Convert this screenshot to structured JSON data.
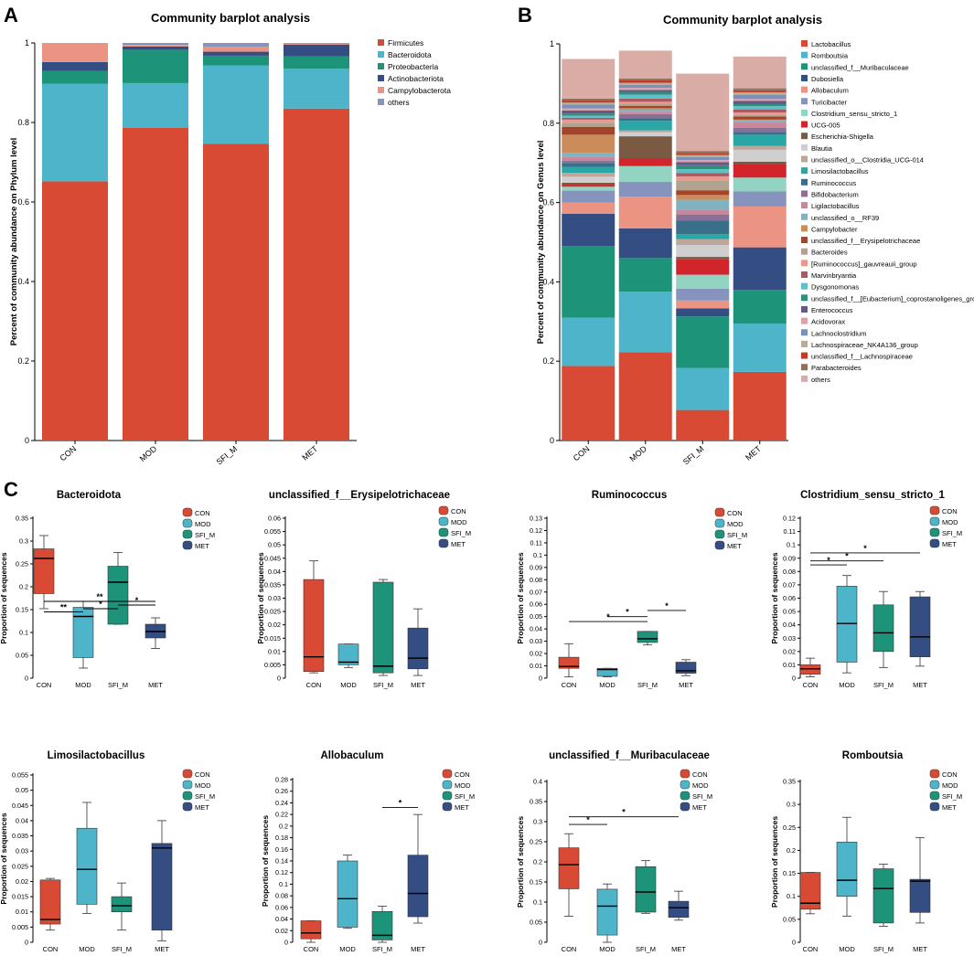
{
  "palette": {
    "CON": "#d94a35",
    "MOD": "#4eb4c9",
    "SFI_M": "#1d9479",
    "MET": "#344d82"
  },
  "chart_data": [
    {
      "panel": "A",
      "type": "bar",
      "stacked": true,
      "title": "Community barplot analysis",
      "ylabel": "Percent of community abundance on Phylum level",
      "ylim": [
        0,
        1
      ],
      "yticks": [
        "0",
        "0.2",
        "0.4",
        "0.6",
        "0.8",
        "1"
      ],
      "categories": [
        "CON",
        "MOD",
        "SFI_M",
        "MET"
      ],
      "series": [
        {
          "name": "Firmicutes",
          "color": "#d94a35",
          "values": [
            0.652,
            0.787,
            0.746,
            0.835
          ]
        },
        {
          "name": "Bacteroidota",
          "color": "#4eb4c9",
          "values": [
            0.245,
            0.112,
            0.197,
            0.1
          ]
        },
        {
          "name": "Proteobacteria",
          "color": "#1d9479",
          "values": [
            0.033,
            0.084,
            0.025,
            0.031
          ]
        },
        {
          "name": "Actinobacteriota",
          "color": "#344d82",
          "values": [
            0.022,
            0.008,
            0.01,
            0.03
          ]
        },
        {
          "name": "Campylobacterota",
          "color": "#ec9483",
          "values": [
            0.048,
            0.004,
            0.012,
            0.002
          ]
        },
        {
          "name": "others",
          "color": "#8694bd",
          "values": [
            0.0,
            0.005,
            0.01,
            0.002
          ]
        }
      ]
    },
    {
      "panel": "B",
      "type": "bar",
      "stacked": true,
      "title": "Community barplot analysis",
      "ylabel": "Percent of community abundance on Genus level",
      "ylim": [
        0,
        1
      ],
      "yticks": [
        "0",
        "0.2",
        "0.4",
        "0.6",
        "0.8",
        "1"
      ],
      "categories": [
        "CON",
        "MOD",
        "SFI_M",
        "MET"
      ],
      "series": [
        {
          "name": "Lactobacillus",
          "color": "#d94a35",
          "values": [
            0.188,
            0.223,
            0.077,
            0.173
          ]
        },
        {
          "name": "Romboutsia",
          "color": "#4eb4c9",
          "values": [
            0.122,
            0.152,
            0.106,
            0.122
          ]
        },
        {
          "name": "unclassified_f__Muribaculaceae",
          "color": "#1d9479",
          "values": [
            0.18,
            0.085,
            0.13,
            0.085
          ]
        },
        {
          "name": "Dubosiella",
          "color": "#344d82",
          "values": [
            0.082,
            0.075,
            0.02,
            0.107
          ]
        },
        {
          "name": "Allobaculum",
          "color": "#ec9483",
          "values": [
            0.028,
            0.08,
            0.02,
            0.103
          ]
        },
        {
          "name": "Turicibacter",
          "color": "#8694bd",
          "values": [
            0.03,
            0.037,
            0.03,
            0.038
          ]
        },
        {
          "name": "Clostridium_sensu_stricto_1",
          "color": "#93d3c1",
          "values": [
            0.01,
            0.04,
            0.035,
            0.035
          ]
        },
        {
          "name": "UCG-005",
          "color": "#d1242b",
          "values": [
            0.005,
            0.02,
            0.04,
            0.035
          ]
        },
        {
          "name": "Escherichia-Shigella",
          "color": "#7b5a44",
          "values": [
            0.005,
            0.055,
            0.005,
            0.005
          ]
        },
        {
          "name": "Blautia",
          "color": "#d0cece",
          "values": [
            0.015,
            0.01,
            0.03,
            0.03
          ]
        },
        {
          "name": "unclassified_o__Clostridia_UCG-014",
          "color": "#bea69a",
          "values": [
            0.01,
            0.005,
            0.015,
            0.01
          ]
        },
        {
          "name": "Limosilactobacillus",
          "color": "#2aa6a6",
          "values": [
            0.015,
            0.024,
            0.012,
            0.028
          ]
        },
        {
          "name": "Ruminococcus",
          "color": "#3a6f89",
          "values": [
            0.01,
            0.007,
            0.035,
            0.007
          ]
        },
        {
          "name": "Bifidobacterium",
          "color": "#8a6f96",
          "values": [
            0.005,
            0.01,
            0.015,
            0.01
          ]
        },
        {
          "name": "Ligilactobacillus",
          "color": "#c8879a",
          "values": [
            0.01,
            0.006,
            0.012,
            0.014
          ]
        },
        {
          "name": "unclassified_o__RF39",
          "color": "#80b2c0",
          "values": [
            0.01,
            0.005,
            0.025,
            0.005
          ]
        },
        {
          "name": "Campylobacter",
          "color": "#cb8b5b",
          "values": [
            0.046,
            0.004,
            0.012,
            0.002
          ]
        },
        {
          "name": "unclassified_f__Erysipelotrichaceae",
          "color": "#a3452b",
          "values": [
            0.02,
            0.006,
            0.012,
            0.008
          ]
        },
        {
          "name": "Bacteroides",
          "color": "#b0a390",
          "values": [
            0.01,
            0.005,
            0.025,
            0.005
          ]
        },
        {
          "name": "[Ruminococcus]_gauvreauii_group",
          "color": "#e89a8d",
          "values": [
            0.008,
            0.005,
            0.01,
            0.005
          ]
        },
        {
          "name": "Marvinbryantia",
          "color": "#aa5a62",
          "values": [
            0.005,
            0.008,
            0.008,
            0.008
          ]
        },
        {
          "name": "Dysgonomonas",
          "color": "#5fc0c8",
          "values": [
            0.005,
            0.01,
            0.01,
            0.008
          ]
        },
        {
          "name": "unclassified_f__[Eubacterium]_coprostanoligenes_group",
          "color": "#2f8f7e",
          "values": [
            0.005,
            0.007,
            0.01,
            0.005
          ]
        },
        {
          "name": "Enterococcus",
          "color": "#655883",
          "values": [
            0.008,
            0.005,
            0.008,
            0.008
          ]
        },
        {
          "name": "Acidovorax",
          "color": "#e0a0a8",
          "values": [
            0.005,
            0.005,
            0.005,
            0.005
          ]
        },
        {
          "name": "Lachnoclostridium",
          "color": "#7d90b7",
          "values": [
            0.01,
            0.008,
            0.008,
            0.01
          ]
        },
        {
          "name": "Lachnospiraceae_NK4A136_group",
          "color": "#b7ae92",
          "values": [
            0.005,
            0.005,
            0.005,
            0.007
          ]
        },
        {
          "name": "unclassified_f__Lachnospiraceae",
          "color": "#c23a2a",
          "values": [
            0.005,
            0.006,
            0.005,
            0.005
          ]
        },
        {
          "name": "Parabacteroides",
          "color": "#8a725e",
          "values": [
            0.005,
            0.005,
            0.005,
            0.005
          ]
        },
        {
          "name": "others",
          "color": "#d9ada6",
          "values": [
            0.1,
            0.07,
            0.195,
            0.08
          ]
        }
      ]
    },
    {
      "panel": "C",
      "type": "box",
      "title": "Bacteroidota",
      "ylabel": "Proportion of sequences",
      "ylim": [
        0,
        0.35
      ],
      "yticks": [
        "0",
        "0.05",
        "0.1",
        "0.15",
        "0.2",
        "0.25",
        "0.3",
        "0.35"
      ],
      "categories": [
        "CON",
        "MOD",
        "SFI_M",
        "MET"
      ],
      "legend": [
        "CON",
        "MOD",
        "SFI_M",
        "MET"
      ],
      "boxes": [
        {
          "min": 0.152,
          "q1": 0.185,
          "median": 0.262,
          "q3": 0.283,
          "max": 0.312
        },
        {
          "min": 0.022,
          "q1": 0.045,
          "median": 0.135,
          "q3": 0.155,
          "max": 0.168
        },
        {
          "min": 0.118,
          "q1": 0.118,
          "median": 0.21,
          "q3": 0.245,
          "max": 0.275
        },
        {
          "min": 0.065,
          "q1": 0.088,
          "median": 0.102,
          "q3": 0.118,
          "max": 0.132
        }
      ],
      "significance": [
        {
          "from": 0,
          "to": 3,
          "label": "**",
          "y": 0.168
        },
        {
          "from": 0,
          "to": 1,
          "label": "**",
          "y": 0.145
        },
        {
          "from": 1,
          "to": 2,
          "label": "*",
          "y": 0.152
        },
        {
          "from": 2,
          "to": 3,
          "label": "*",
          "y": 0.16
        }
      ]
    },
    {
      "panel": "C",
      "type": "box",
      "title": "unclassified_f__Erysipelotrichaceae",
      "ylabel": "Proportion of sequences",
      "ylim": [
        0,
        0.06
      ],
      "yticks": [
        "0",
        "0.005",
        "0.01",
        "0.015",
        "0.02",
        "0.025",
        "0.03",
        "0.035",
        "0.04",
        "0.045",
        "0.05",
        "0.055",
        "0.06"
      ],
      "categories": [
        "CON",
        "MOD",
        "SFI_M",
        "MET"
      ],
      "legend": [
        "CON",
        "MOD",
        "SFI_M",
        "MET"
      ],
      "boxes": [
        {
          "min": 0.002,
          "q1": 0.0025,
          "median": 0.008,
          "q3": 0.037,
          "max": 0.044
        },
        {
          "min": 0.004,
          "q1": 0.005,
          "median": 0.006,
          "q3": 0.0128,
          "max": 0.0128
        },
        {
          "min": 0.001,
          "q1": 0.002,
          "median": 0.0045,
          "q3": 0.036,
          "max": 0.037
        },
        {
          "min": 0.001,
          "q1": 0.0035,
          "median": 0.0075,
          "q3": 0.0188,
          "max": 0.026
        }
      ],
      "significance": []
    },
    {
      "panel": "C",
      "type": "box",
      "title": "Ruminococcus",
      "ylabel": "Proportion of sequences",
      "ylim": [
        0,
        0.13
      ],
      "yticks": [
        "0",
        "0.01",
        "0.02",
        "0.03",
        "0.04",
        "0.05",
        "0.06",
        "0.07",
        "0.08",
        "0.09",
        "0.1",
        "0.11",
        "0.12",
        "0.13"
      ],
      "categories": [
        "CON",
        "MOD",
        "SFI_M",
        "MET"
      ],
      "legend": [
        "CON",
        "MOD",
        "SFI_M",
        "MET"
      ],
      "boxes": [
        {
          "min": 0.001,
          "q1": 0.008,
          "median": 0.0095,
          "q3": 0.017,
          "max": 0.028
        },
        {
          "min": 0.001,
          "q1": 0.0015,
          "median": 0.007,
          "q3": 0.008,
          "max": 0.008
        },
        {
          "min": 0.027,
          "q1": 0.029,
          "median": 0.032,
          "q3": 0.038,
          "max": 0.038
        },
        {
          "min": 0.002,
          "q1": 0.004,
          "median": 0.006,
          "q3": 0.013,
          "max": 0.015
        }
      ],
      "significance": [
        {
          "from": 0,
          "to": 2,
          "label": "*",
          "y": 0.046
        },
        {
          "from": 1,
          "to": 2,
          "label": "*",
          "y": 0.05
        },
        {
          "from": 2,
          "to": 3,
          "label": "*",
          "y": 0.055
        }
      ]
    },
    {
      "panel": "C",
      "type": "box",
      "title": "Clostridium_sensu_stricto_1",
      "ylabel": "Proportion of sequences",
      "ylim": [
        0,
        0.12
      ],
      "yticks": [
        "0",
        "0.01",
        "0.02",
        "0.03",
        "0.04",
        "0.05",
        "0.06",
        "0.07",
        "0.08",
        "0.09",
        "0.1",
        "0.11",
        "0.12"
      ],
      "categories": [
        "CON",
        "MOD",
        "SFI_M",
        "MET"
      ],
      "legend": [
        "CON",
        "MOD",
        "SFI_M",
        "MET"
      ],
      "boxes": [
        {
          "min": 0.001,
          "q1": 0.003,
          "median": 0.007,
          "q3": 0.01,
          "max": 0.015
        },
        {
          "min": 0.004,
          "q1": 0.012,
          "median": 0.041,
          "q3": 0.069,
          "max": 0.077
        },
        {
          "min": 0.008,
          "q1": 0.02,
          "median": 0.034,
          "q3": 0.055,
          "max": 0.065
        },
        {
          "min": 0.009,
          "q1": 0.016,
          "median": 0.031,
          "q3": 0.061,
          "max": 0.065
        }
      ],
      "significance": [
        {
          "from": 0,
          "to": 3,
          "label": "*",
          "y": 0.094
        },
        {
          "from": 0,
          "to": 2,
          "label": "*",
          "y": 0.088
        },
        {
          "from": 0,
          "to": 1,
          "label": "*",
          "y": 0.085
        }
      ]
    },
    {
      "panel": "C",
      "type": "box",
      "title": "Limosilactobacillus",
      "ylabel": "Proportion of sequences",
      "ylim": [
        0,
        0.055
      ],
      "yticks": [
        "0",
        "0.005",
        "0.01",
        "0.015",
        "0.02",
        "0.025",
        "0.03",
        "0.035",
        "0.04",
        "0.045",
        "0.05",
        "0.055"
      ],
      "categories": [
        "CON",
        "MOD",
        "SFI_M",
        "MET"
      ],
      "legend": [
        "CON",
        "MOD",
        "SFI_M",
        "MET"
      ],
      "boxes": [
        {
          "min": 0.004,
          "q1": 0.006,
          "median": 0.0075,
          "q3": 0.0205,
          "max": 0.021
        },
        {
          "min": 0.0095,
          "q1": 0.0125,
          "median": 0.024,
          "q3": 0.0375,
          "max": 0.046
        },
        {
          "min": 0.004,
          "q1": 0.01,
          "median": 0.012,
          "q3": 0.015,
          "max": 0.0195
        },
        {
          "min": 0.0005,
          "q1": 0.004,
          "median": 0.031,
          "q3": 0.0325,
          "max": 0.04
        }
      ],
      "significance": []
    },
    {
      "panel": "C",
      "type": "box",
      "title": "Allobaculum",
      "ylabel": "Proportion of sequences",
      "ylim": [
        0,
        0.28
      ],
      "yticks": [
        "0",
        "0.02",
        "0.04",
        "0.06",
        "0.08",
        "0.1",
        "0.12",
        "0.14",
        "0.16",
        "0.18",
        "0.2",
        "0.22",
        "0.24",
        "0.26",
        "0.28"
      ],
      "categories": [
        "CON",
        "MOD",
        "SFI_M",
        "MET"
      ],
      "legend": [
        "CON",
        "MOD",
        "SFI_M",
        "MET"
      ],
      "boxes": [
        {
          "min": 0.0,
          "q1": 0.006,
          "median": 0.016,
          "q3": 0.037,
          "max": 0.037
        },
        {
          "min": 0.024,
          "q1": 0.026,
          "median": 0.075,
          "q3": 0.14,
          "max": 0.15
        },
        {
          "min": 0.0,
          "q1": 0.004,
          "median": 0.012,
          "q3": 0.053,
          "max": 0.062
        },
        {
          "min": 0.033,
          "q1": 0.044,
          "median": 0.084,
          "q3": 0.15,
          "max": 0.22
        }
      ],
      "significance": [
        {
          "from": 2,
          "to": 3,
          "label": "*",
          "y": 0.232
        }
      ]
    },
    {
      "panel": "C",
      "type": "box",
      "title": "unclassified_f__Muribaculaceae",
      "ylabel": "Proportion of sequences",
      "ylim": [
        0,
        0.4
      ],
      "yticks": [
        "0",
        "0.05",
        "0.1",
        "0.15",
        "0.2",
        "0.25",
        "0.3",
        "0.35",
        "0.4"
      ],
      "categories": [
        "CON",
        "MOD",
        "SFI_M",
        "MET"
      ],
      "legend": [
        "CON",
        "MOD",
        "SFI_M",
        "MET"
      ],
      "boxes": [
        {
          "min": 0.065,
          "q1": 0.133,
          "median": 0.193,
          "q3": 0.235,
          "max": 0.27
        },
        {
          "min": 0.0,
          "q1": 0.018,
          "median": 0.09,
          "q3": 0.132,
          "max": 0.145
        },
        {
          "min": 0.072,
          "q1": 0.075,
          "median": 0.125,
          "q3": 0.188,
          "max": 0.203
        },
        {
          "min": 0.055,
          "q1": 0.062,
          "median": 0.086,
          "q3": 0.102,
          "max": 0.127
        }
      ],
      "significance": [
        {
          "from": 0,
          "to": 1,
          "label": "*",
          "y": 0.293
        },
        {
          "from": 0,
          "to": 3,
          "label": "*",
          "y": 0.312
        }
      ]
    },
    {
      "panel": "C",
      "type": "box",
      "title": "Romboutsia",
      "ylabel": "Proportion of sequences",
      "ylim": [
        0,
        0.35
      ],
      "yticks": [
        "0",
        "0.05",
        "0.1",
        "0.15",
        "0.2",
        "0.25",
        "0.3",
        "0.35"
      ],
      "categories": [
        "CON",
        "MOD",
        "SFI_M",
        "MET"
      ],
      "legend": [
        "CON",
        "MOD",
        "SFI_M",
        "MET"
      ],
      "boxes": [
        {
          "min": 0.062,
          "q1": 0.072,
          "median": 0.085,
          "q3": 0.152,
          "max": 0.152
        },
        {
          "min": 0.057,
          "q1": 0.1,
          "median": 0.135,
          "q3": 0.218,
          "max": 0.272
        },
        {
          "min": 0.035,
          "q1": 0.042,
          "median": 0.117,
          "q3": 0.16,
          "max": 0.17
        },
        {
          "min": 0.042,
          "q1": 0.065,
          "median": 0.133,
          "q3": 0.137,
          "max": 0.228
        }
      ],
      "significance": []
    }
  ],
  "panel_labels": [
    "A",
    "B",
    "C"
  ]
}
